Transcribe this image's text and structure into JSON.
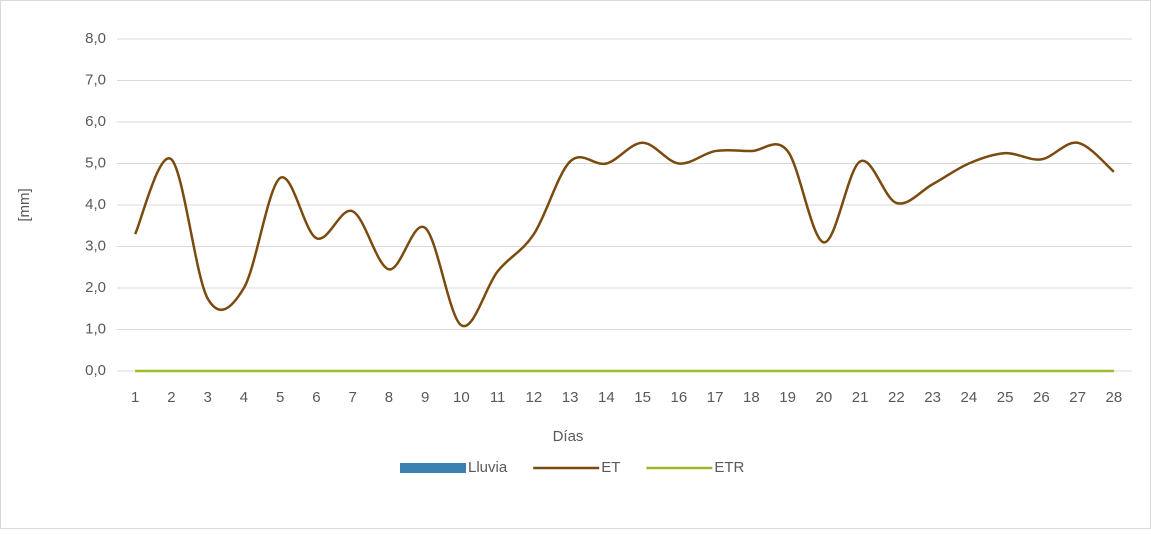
{
  "chart_data": {
    "type": "line",
    "x_label": "Días",
    "y_label": "[mm]",
    "categories": [
      1,
      2,
      3,
      4,
      5,
      6,
      7,
      8,
      9,
      10,
      11,
      12,
      13,
      14,
      15,
      16,
      17,
      18,
      19,
      20,
      21,
      22,
      23,
      24,
      25,
      26,
      27,
      28
    ],
    "series": [
      {
        "name": "Lluvia",
        "type": "bar",
        "color": "#3a80b0",
        "values": [
          0,
          0,
          0,
          0,
          0,
          0,
          0,
          0,
          0,
          0,
          0,
          0,
          0,
          0,
          0,
          0,
          0,
          0,
          0,
          0,
          0,
          0,
          0,
          0,
          0,
          0,
          0,
          0
        ]
      },
      {
        "name": "ET",
        "type": "line",
        "color": "#7b4a0e",
        "values": [
          3.3,
          5.1,
          1.75,
          2.0,
          4.65,
          3.2,
          3.85,
          2.45,
          3.45,
          1.1,
          2.4,
          3.3,
          5.05,
          5.0,
          5.5,
          5.0,
          5.3,
          5.3,
          5.3,
          3.1,
          5.05,
          4.05,
          4.5,
          5.0,
          5.25,
          5.1,
          5.5,
          4.8
        ]
      },
      {
        "name": "ETR",
        "type": "line",
        "color": "#9bbb2b",
        "values": [
          0,
          0,
          0,
          0,
          0,
          0,
          0,
          0,
          0,
          0,
          0,
          0,
          0,
          0,
          0,
          0,
          0,
          0,
          0,
          0,
          0,
          0,
          0,
          0,
          0,
          0,
          0,
          0
        ]
      }
    ],
    "ylim": [
      0,
      8
    ],
    "yticks": [
      {
        "value": 0,
        "label": "0,0"
      },
      {
        "value": 1,
        "label": "1,0"
      },
      {
        "value": 2,
        "label": "2,0"
      },
      {
        "value": 3,
        "label": "3,0"
      },
      {
        "value": 4,
        "label": "4,0"
      },
      {
        "value": 5,
        "label": "5,0"
      },
      {
        "value": 6,
        "label": "6,0"
      },
      {
        "value": 7,
        "label": "7,0"
      },
      {
        "value": 8,
        "label": "8,0"
      }
    ],
    "grid": true,
    "legend": "bottom"
  }
}
